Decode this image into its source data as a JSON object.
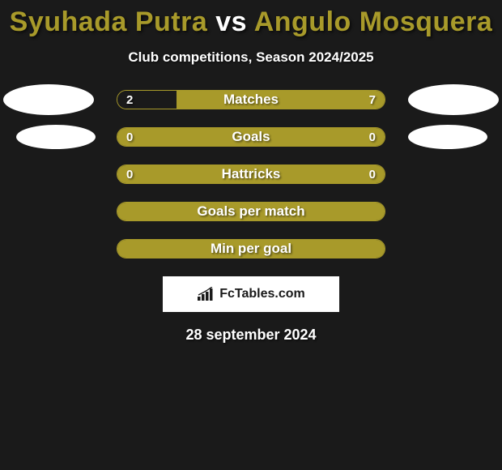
{
  "title": {
    "player1": "Syuhada Putra",
    "vs": "vs",
    "player2": "Angulo Mosquera",
    "color1": "#a89a2a",
    "color_vs": "#ffffff",
    "color2": "#a89a2a"
  },
  "subtitle": "Club competitions, Season 2024/2025",
  "colors": {
    "background": "#1a1a1a",
    "bar_primary": "#a89a2a",
    "bar_border": "#a89a2a",
    "bar_empty": "#1a1a1a",
    "avatar_fill": "#ffffff",
    "text": "#ffffff"
  },
  "stats": [
    {
      "label": "Matches",
      "left_val": "2",
      "right_val": "7",
      "left_pct": 22,
      "right_pct": 78,
      "show_left_avatar": true,
      "show_right_avatar": true,
      "avatar_size": "large",
      "show_vals": true
    },
    {
      "label": "Goals",
      "left_val": "0",
      "right_val": "0",
      "left_pct": 50,
      "right_pct": 50,
      "show_left_avatar": true,
      "show_right_avatar": true,
      "avatar_size": "small",
      "show_vals": true
    },
    {
      "label": "Hattricks",
      "left_val": "0",
      "right_val": "0",
      "left_pct": 50,
      "right_pct": 50,
      "show_left_avatar": false,
      "show_right_avatar": false,
      "avatar_size": "small",
      "show_vals": true
    },
    {
      "label": "Goals per match",
      "left_val": "",
      "right_val": "",
      "left_pct": 100,
      "right_pct": 0,
      "show_left_avatar": false,
      "show_right_avatar": false,
      "avatar_size": "small",
      "show_vals": false
    },
    {
      "label": "Min per goal",
      "left_val": "",
      "right_val": "",
      "left_pct": 100,
      "right_pct": 0,
      "show_left_avatar": false,
      "show_right_avatar": false,
      "avatar_size": "small",
      "show_vals": false
    }
  ],
  "badge": {
    "text": "FcTables.com"
  },
  "date": "28 september 2024"
}
